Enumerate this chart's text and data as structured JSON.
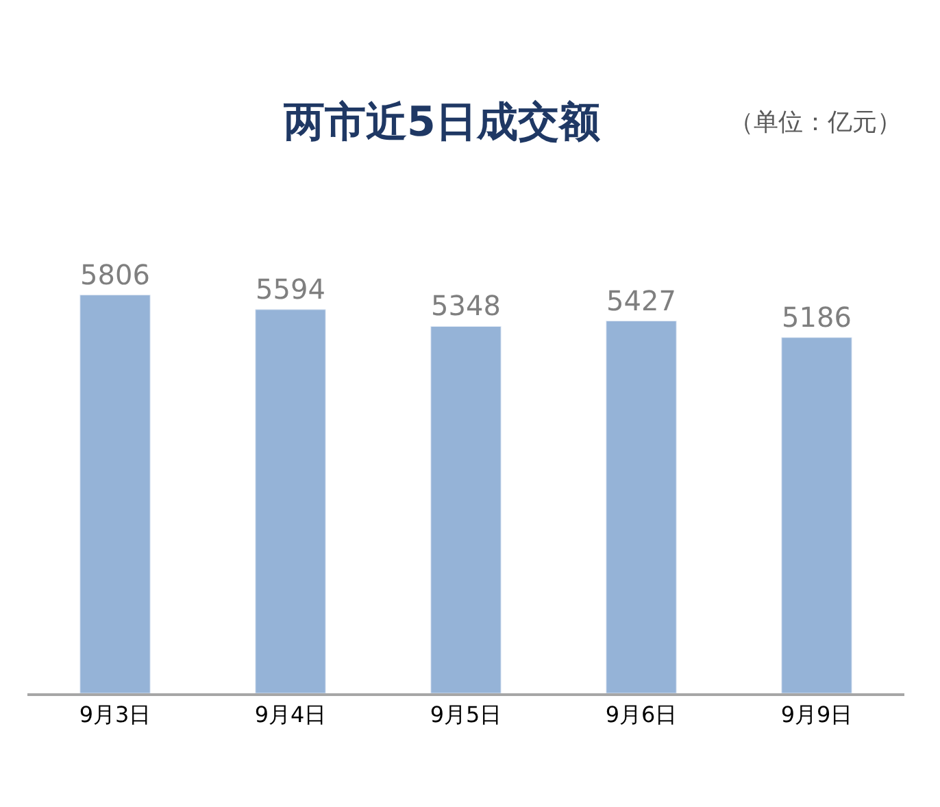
{
  "chart_data": {
    "type": "bar",
    "title": "两市近5日成交额",
    "annotations": [
      "（单位：亿元）"
    ],
    "categories": [
      "9月3日",
      "9月4日",
      "9月5日",
      "9月6日",
      "9月9日"
    ],
    "values": [
      5806,
      5594,
      5348,
      5427,
      5186
    ],
    "color": "#95b3d7",
    "data_labels": true,
    "legend": false,
    "tick_labels": "x"
  }
}
